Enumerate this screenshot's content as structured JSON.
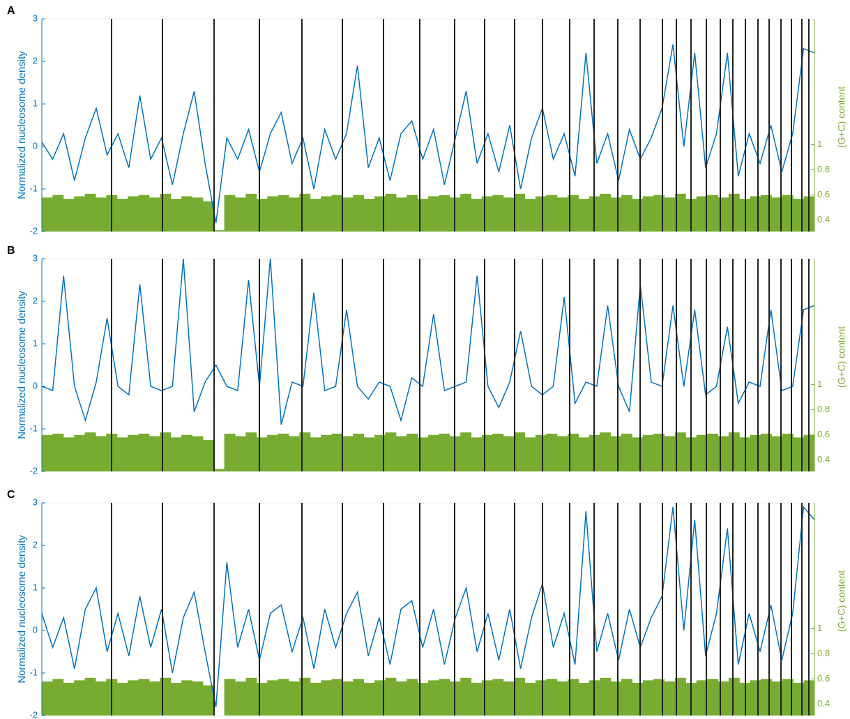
{
  "chart_data": [
    {
      "type": "line",
      "panel": "A",
      "ylabel": "Normalized nucleosome density",
      "y2label": "(G+C) content",
      "ylim": [
        -2,
        3
      ],
      "yticks": [
        -2,
        -1,
        0,
        1,
        2,
        3
      ],
      "y2lim": [
        0.31,
        2.0
      ],
      "y2ticks": [
        0.4,
        0.6,
        0.8,
        1
      ],
      "series": [
        {
          "color": "#0072bd",
          "values": [
            0.1,
            -0.3,
            0.3,
            -0.8,
            0.2,
            0.9,
            -0.2,
            0.3,
            -0.5,
            1.2,
            -0.3,
            0.2,
            -0.9,
            0.3,
            1.3,
            -0.4,
            -1.8,
            0.2,
            -0.3,
            0.4,
            -0.6,
            0.3,
            0.8,
            -0.4,
            0.2,
            -1.0,
            0.4,
            -0.3,
            0.3,
            1.9,
            -0.5,
            0.2,
            -0.8,
            0.3,
            0.6,
            -0.3,
            0.4,
            -0.9,
            0.2,
            1.3,
            -0.4,
            0.3,
            -0.6,
            0.5,
            -1.0,
            0.2,
            0.9,
            -0.3,
            0.3,
            -0.7,
            2.2,
            -0.4,
            0.3,
            -0.8,
            0.4,
            -0.3,
            0.2,
            0.9,
            2.4,
            0.0,
            2.2,
            -0.5,
            0.3,
            2.2,
            -0.7,
            0.3,
            -0.4,
            0.5,
            -0.6,
            0.3,
            2.3,
            2.2
          ]
        },
        {
          "color": "#77ac30",
          "axis": "y2",
          "values": [
            0.58,
            0.6,
            0.57,
            0.59,
            0.61,
            0.58,
            0.6,
            0.57,
            0.59,
            0.6,
            0.58,
            0.61,
            0.57,
            0.59,
            0.58,
            0.55,
            0.32,
            0.6,
            0.58,
            0.61,
            0.57,
            0.59,
            0.6,
            0.58,
            0.61,
            0.57,
            0.59,
            0.6,
            0.58,
            0.6,
            0.57,
            0.59,
            0.61,
            0.58,
            0.6,
            0.57,
            0.59,
            0.6,
            0.58,
            0.61,
            0.57,
            0.59,
            0.6,
            0.58,
            0.61,
            0.57,
            0.59,
            0.6,
            0.58,
            0.6,
            0.57,
            0.59,
            0.61,
            0.58,
            0.6,
            0.57,
            0.59,
            0.6,
            0.58,
            0.61,
            0.57,
            0.59,
            0.6,
            0.58,
            0.61,
            0.57,
            0.59,
            0.6,
            0.58,
            0.6,
            0.57,
            0.59
          ]
        }
      ]
    },
    {
      "type": "line",
      "panel": "B",
      "ylabel": "Normalized nucleosome density",
      "y2label": "(G+C) content",
      "ylim": [
        -2,
        3
      ],
      "yticks": [
        -2,
        -1,
        0,
        1,
        2,
        3
      ],
      "y2lim": [
        0.31,
        2.0
      ],
      "y2ticks": [
        0.4,
        0.6,
        0.8,
        1
      ],
      "series": [
        {
          "color": "#0072bd",
          "values": [
            0.0,
            -0.1,
            2.6,
            0.0,
            -0.8,
            0.1,
            1.6,
            0.0,
            -0.2,
            2.4,
            0.0,
            -0.1,
            0.0,
            3.0,
            -0.6,
            0.1,
            0.5,
            0.0,
            -0.1,
            2.5,
            0.0,
            3.0,
            -0.9,
            0.1,
            0.0,
            2.2,
            -0.1,
            0.0,
            1.8,
            0.0,
            -0.3,
            0.1,
            0.0,
            -0.8,
            0.2,
            0.0,
            1.7,
            -0.1,
            0.0,
            0.1,
            2.6,
            0.0,
            -0.5,
            0.1,
            1.3,
            0.0,
            -0.2,
            0.0,
            2.1,
            -0.4,
            0.1,
            0.0,
            1.9,
            0.0,
            -0.6,
            2.4,
            0.1,
            0.0,
            1.9,
            0.0,
            1.8,
            -0.2,
            0.0,
            1.4,
            -0.4,
            0.1,
            0.0,
            1.8,
            -0.1,
            0.0,
            1.8,
            1.9
          ]
        },
        {
          "color": "#77ac30",
          "axis": "y2",
          "values": [
            0.6,
            0.61,
            0.58,
            0.6,
            0.62,
            0.59,
            0.61,
            0.58,
            0.6,
            0.61,
            0.59,
            0.62,
            0.58,
            0.6,
            0.59,
            0.56,
            0.33,
            0.61,
            0.59,
            0.62,
            0.58,
            0.6,
            0.61,
            0.59,
            0.62,
            0.58,
            0.6,
            0.61,
            0.59,
            0.61,
            0.58,
            0.6,
            0.62,
            0.59,
            0.61,
            0.58,
            0.6,
            0.61,
            0.59,
            0.62,
            0.58,
            0.6,
            0.61,
            0.59,
            0.62,
            0.58,
            0.6,
            0.61,
            0.59,
            0.61,
            0.58,
            0.6,
            0.62,
            0.59,
            0.61,
            0.58,
            0.6,
            0.61,
            0.59,
            0.62,
            0.58,
            0.6,
            0.61,
            0.59,
            0.62,
            0.58,
            0.6,
            0.61,
            0.59,
            0.61,
            0.58,
            0.6
          ]
        }
      ]
    },
    {
      "type": "line",
      "panel": "C",
      "ylabel": "Normalized nucleosome density",
      "y2label": "(G+C) content",
      "ylim": [
        -2,
        3
      ],
      "yticks": [
        -2,
        -1,
        0,
        1,
        2,
        3
      ],
      "y2lim": [
        0.31,
        2.0
      ],
      "y2ticks": [
        0.4,
        0.6,
        0.8,
        1
      ],
      "series": [
        {
          "color": "#0072bd",
          "values": [
            0.4,
            -0.4,
            0.3,
            -0.9,
            0.5,
            1.0,
            -0.5,
            0.4,
            -0.6,
            0.8,
            -0.4,
            0.5,
            -1.0,
            0.3,
            0.9,
            -0.5,
            -1.8,
            1.6,
            -0.4,
            0.5,
            -0.7,
            0.4,
            0.6,
            -0.5,
            0.3,
            -0.9,
            0.5,
            -0.4,
            0.4,
            0.9,
            -0.6,
            0.3,
            -0.8,
            0.5,
            0.7,
            -0.4,
            0.5,
            -0.8,
            0.3,
            1.0,
            -0.5,
            0.4,
            -0.7,
            0.5,
            -0.9,
            0.3,
            1.1,
            -0.4,
            0.4,
            -0.8,
            2.8,
            -0.5,
            0.4,
            -0.7,
            0.5,
            -0.4,
            0.3,
            0.8,
            2.9,
            0.0,
            2.6,
            -0.6,
            0.4,
            2.4,
            -0.8,
            0.4,
            -0.5,
            0.6,
            -0.7,
            0.4,
            2.9,
            2.6
          ]
        },
        {
          "color": "#77ac30",
          "axis": "y2",
          "values": [
            0.58,
            0.6,
            0.57,
            0.59,
            0.61,
            0.58,
            0.6,
            0.57,
            0.59,
            0.6,
            0.58,
            0.61,
            0.57,
            0.59,
            0.58,
            0.55,
            0.31,
            0.6,
            0.58,
            0.61,
            0.57,
            0.59,
            0.6,
            0.58,
            0.61,
            0.57,
            0.59,
            0.6,
            0.58,
            0.6,
            0.57,
            0.59,
            0.61,
            0.58,
            0.6,
            0.57,
            0.59,
            0.6,
            0.58,
            0.61,
            0.57,
            0.59,
            0.6,
            0.58,
            0.61,
            0.57,
            0.59,
            0.6,
            0.58,
            0.6,
            0.57,
            0.59,
            0.61,
            0.58,
            0.6,
            0.57,
            0.59,
            0.6,
            0.58,
            0.61,
            0.57,
            0.59,
            0.6,
            0.58,
            0.61,
            0.57,
            0.59,
            0.6,
            0.58,
            0.6,
            0.57,
            0.59
          ]
        }
      ]
    }
  ]
}
